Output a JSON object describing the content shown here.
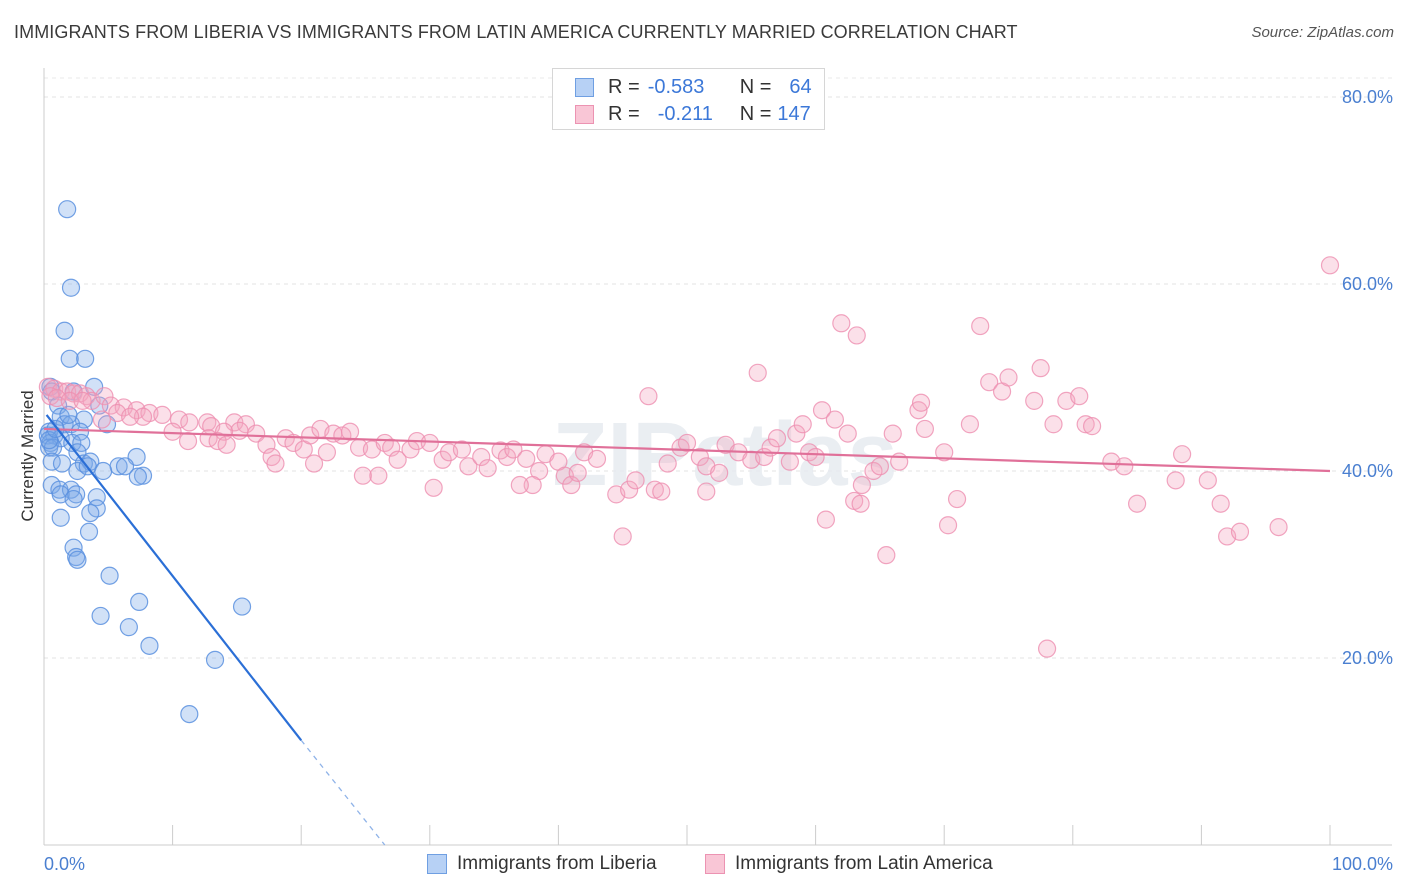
{
  "title": "IMMIGRANTS FROM LIBERIA VS IMMIGRANTS FROM LATIN AMERICA CURRENTLY MARRIED CORRELATION CHART",
  "source": "Source: ZipAtlas.com",
  "watermark": "ZIPatlas",
  "legend": {
    "rows": [
      {
        "r_label": "R =",
        "r_value": "-0.583",
        "n_label": "N =",
        "n_value": "64"
      },
      {
        "r_label": "R =",
        "r_value": "-0.211",
        "n_label": "N =",
        "n_value": "147"
      }
    ]
  },
  "chart_data": {
    "type": "scatter",
    "title": "IMMIGRANTS FROM LIBERIA VS IMMIGRANTS FROM LATIN AMERICA CURRENTLY MARRIED CORRELATION CHART",
    "xlabel": "",
    "ylabel": "Currently Married",
    "xlim": [
      0,
      100
    ],
    "ylim": [
      0,
      80
    ],
    "x_tick_labels": [
      "0.0%",
      "100.0%"
    ],
    "y_ticks": [
      20,
      40,
      60,
      80
    ],
    "y_tick_labels": [
      "20.0%",
      "40.0%",
      "60.0%",
      "80.0%"
    ],
    "grid": true,
    "legend_position": "top-center",
    "series": [
      {
        "name": "Immigrants from Liberia",
        "color": "#7aaae8",
        "line_color": "#2b6fd6",
        "r": -0.583,
        "n": 64,
        "trend": {
          "x0": 0.2,
          "y0": 46.0,
          "x1": 20.0,
          "y1": 11.2,
          "dash_to_x": 26.5,
          "dash_to_y": 0.0
        },
        "points": [
          [
            1.8,
            68.0
          ],
          [
            2.1,
            59.6
          ],
          [
            1.6,
            55.0
          ],
          [
            2.0,
            52.0
          ],
          [
            3.2,
            52.0
          ],
          [
            0.5,
            49.0
          ],
          [
            3.9,
            49.0
          ],
          [
            0.6,
            48.5
          ],
          [
            2.3,
            48.5
          ],
          [
            1.1,
            47.0
          ],
          [
            4.3,
            47.0
          ],
          [
            1.3,
            45.8
          ],
          [
            3.1,
            45.5
          ],
          [
            1.6,
            45.0
          ],
          [
            2.1,
            45.0
          ],
          [
            4.9,
            45.0
          ],
          [
            0.4,
            44.2
          ],
          [
            2.8,
            44.2
          ],
          [
            0.3,
            43.8
          ],
          [
            0.8,
            43.8
          ],
          [
            1.3,
            43.5
          ],
          [
            0.5,
            43.0
          ],
          [
            2.2,
            43.0
          ],
          [
            2.9,
            43.0
          ],
          [
            0.4,
            42.5
          ],
          [
            0.7,
            42.5
          ],
          [
            2.6,
            42.0
          ],
          [
            7.2,
            41.5
          ],
          [
            0.6,
            41.0
          ],
          [
            1.4,
            40.8
          ],
          [
            3.1,
            40.8
          ],
          [
            3.6,
            41.0
          ],
          [
            5.8,
            40.5
          ],
          [
            6.3,
            40.5
          ],
          [
            2.6,
            40.0
          ],
          [
            4.6,
            40.0
          ],
          [
            7.7,
            39.5
          ],
          [
            7.3,
            39.4
          ],
          [
            0.6,
            38.5
          ],
          [
            1.2,
            38.0
          ],
          [
            2.1,
            38.0
          ],
          [
            1.3,
            37.5
          ],
          [
            2.5,
            37.5
          ],
          [
            4.1,
            37.2
          ],
          [
            2.3,
            37.0
          ],
          [
            4.1,
            36.0
          ],
          [
            3.6,
            35.5
          ],
          [
            1.3,
            35.0
          ],
          [
            3.5,
            33.5
          ],
          [
            2.3,
            31.8
          ],
          [
            2.5,
            30.8
          ],
          [
            2.6,
            30.5
          ],
          [
            5.1,
            28.8
          ],
          [
            7.4,
            26.0
          ],
          [
            15.4,
            25.5
          ],
          [
            4.4,
            24.5
          ],
          [
            6.6,
            23.3
          ],
          [
            8.2,
            21.3
          ],
          [
            13.3,
            19.8
          ],
          [
            11.3,
            14.0
          ],
          [
            0.4,
            43.3
          ],
          [
            0.9,
            44.5
          ],
          [
            1.9,
            46.0
          ],
          [
            3.4,
            40.5
          ]
        ]
      },
      {
        "name": "Immigrants from Latin America",
        "color": "#f4a6c0",
        "line_color": "#e07099",
        "r": -0.211,
        "n": 147,
        "trend": {
          "x0": 0.0,
          "y0": 44.5,
          "x1": 100.0,
          "y1": 40.0
        },
        "points": [
          [
            0.3,
            49.0
          ],
          [
            0.8,
            48.8
          ],
          [
            1.3,
            48.5
          ],
          [
            1.8,
            48.5
          ],
          [
            2.3,
            48.3
          ],
          [
            2.8,
            48.3
          ],
          [
            3.3,
            48.0
          ],
          [
            0.5,
            48.0
          ],
          [
            1.0,
            47.8
          ],
          [
            2.0,
            47.5
          ],
          [
            3.7,
            47.5
          ],
          [
            4.7,
            48.0
          ],
          [
            5.2,
            47.0
          ],
          [
            3.0,
            47.5
          ],
          [
            6.2,
            46.8
          ],
          [
            7.2,
            46.5
          ],
          [
            8.2,
            46.2
          ],
          [
            9.2,
            46.0
          ],
          [
            7.7,
            45.8
          ],
          [
            5.7,
            46.2
          ],
          [
            6.7,
            45.8
          ],
          [
            4.5,
            45.5
          ],
          [
            10.5,
            45.5
          ],
          [
            11.3,
            45.2
          ],
          [
            12.7,
            45.2
          ],
          [
            13.0,
            44.8
          ],
          [
            14.8,
            45.2
          ],
          [
            15.7,
            45.0
          ],
          [
            15.2,
            44.3
          ],
          [
            14.0,
            44.2
          ],
          [
            10.0,
            44.2
          ],
          [
            11.2,
            43.2
          ],
          [
            12.8,
            43.5
          ],
          [
            13.5,
            43.2
          ],
          [
            14.2,
            42.8
          ],
          [
            16.5,
            44.0
          ],
          [
            17.3,
            42.8
          ],
          [
            18.8,
            43.5
          ],
          [
            19.4,
            43.0
          ],
          [
            20.2,
            42.3
          ],
          [
            20.7,
            43.8
          ],
          [
            21.5,
            44.5
          ],
          [
            22.5,
            44.0
          ],
          [
            23.2,
            43.8
          ],
          [
            23.8,
            44.2
          ],
          [
            17.7,
            41.5
          ],
          [
            18.0,
            40.8
          ],
          [
            21.0,
            40.8
          ],
          [
            22.0,
            42.0
          ],
          [
            24.5,
            42.5
          ],
          [
            25.5,
            42.3
          ],
          [
            26.5,
            43.0
          ],
          [
            27.0,
            42.5
          ],
          [
            27.5,
            41.2
          ],
          [
            28.5,
            42.3
          ],
          [
            29.0,
            43.2
          ],
          [
            30.0,
            43.0
          ],
          [
            31.0,
            41.2
          ],
          [
            31.5,
            42.0
          ],
          [
            32.5,
            42.3
          ],
          [
            33.0,
            40.5
          ],
          [
            34.0,
            41.5
          ],
          [
            34.5,
            40.3
          ],
          [
            35.5,
            42.2
          ],
          [
            36.0,
            41.5
          ],
          [
            36.5,
            42.3
          ],
          [
            37.5,
            41.3
          ],
          [
            38.5,
            40.0
          ],
          [
            39.0,
            41.8
          ],
          [
            40.0,
            41.0
          ],
          [
            40.5,
            39.5
          ],
          [
            41.0,
            38.5
          ],
          [
            38.0,
            38.5
          ],
          [
            42.0,
            42.0
          ],
          [
            43.0,
            41.3
          ],
          [
            37.0,
            38.5
          ],
          [
            24.8,
            39.5
          ],
          [
            26.0,
            39.5
          ],
          [
            41.5,
            39.8
          ],
          [
            44.5,
            37.5
          ],
          [
            45.5,
            38.0
          ],
          [
            46.0,
            39.0
          ],
          [
            47.5,
            38.0
          ],
          [
            48.0,
            37.8
          ],
          [
            48.5,
            40.8
          ],
          [
            49.5,
            42.5
          ],
          [
            50.0,
            43.0
          ],
          [
            51.0,
            41.5
          ],
          [
            51.5,
            40.5
          ],
          [
            52.5,
            39.8
          ],
          [
            53.0,
            42.8
          ],
          [
            54.0,
            42.0
          ],
          [
            55.0,
            41.2
          ],
          [
            56.0,
            41.5
          ],
          [
            56.5,
            42.5
          ],
          [
            57.0,
            43.5
          ],
          [
            58.0,
            41.0
          ],
          [
            58.5,
            44.0
          ],
          [
            59.0,
            45.0
          ],
          [
            59.5,
            42.0
          ],
          [
            60.0,
            41.5
          ],
          [
            60.5,
            46.5
          ],
          [
            61.5,
            45.5
          ],
          [
            62.5,
            44.0
          ],
          [
            63.0,
            36.8
          ],
          [
            63.5,
            36.5
          ],
          [
            64.5,
            40.0
          ],
          [
            65.0,
            40.5
          ],
          [
            66.0,
            44.0
          ],
          [
            66.5,
            41.0
          ],
          [
            68.0,
            46.5
          ],
          [
            68.5,
            44.5
          ],
          [
            70.0,
            42.0
          ],
          [
            72.0,
            45.0
          ],
          [
            73.5,
            49.5
          ],
          [
            74.5,
            48.5
          ],
          [
            75.0,
            50.0
          ],
          [
            77.0,
            47.5
          ],
          [
            77.5,
            51.0
          ],
          [
            78.5,
            45.0
          ],
          [
            79.5,
            47.5
          ],
          [
            80.5,
            48.0
          ],
          [
            81.0,
            45.0
          ],
          [
            81.5,
            44.8
          ],
          [
            83.0,
            41.0
          ],
          [
            84.0,
            40.5
          ],
          [
            85.0,
            36.5
          ],
          [
            88.0,
            39.0
          ],
          [
            88.5,
            41.8
          ],
          [
            90.5,
            39.0
          ],
          [
            91.5,
            36.5
          ],
          [
            92.0,
            33.0
          ],
          [
            93.0,
            33.5
          ],
          [
            96.0,
            34.0
          ],
          [
            100.0,
            62.0
          ],
          [
            45.0,
            33.0
          ],
          [
            65.5,
            31.0
          ],
          [
            68.2,
            47.3
          ],
          [
            70.3,
            34.2
          ],
          [
            63.2,
            54.5
          ],
          [
            71.0,
            37.0
          ],
          [
            72.8,
            55.5
          ],
          [
            47.0,
            48.0
          ],
          [
            55.5,
            50.5
          ],
          [
            62.0,
            55.8
          ],
          [
            51.5,
            37.8
          ],
          [
            60.8,
            34.8
          ],
          [
            63.6,
            38.5
          ],
          [
            78.0,
            21.0
          ],
          [
            30.3,
            38.2
          ]
        ]
      }
    ]
  }
}
